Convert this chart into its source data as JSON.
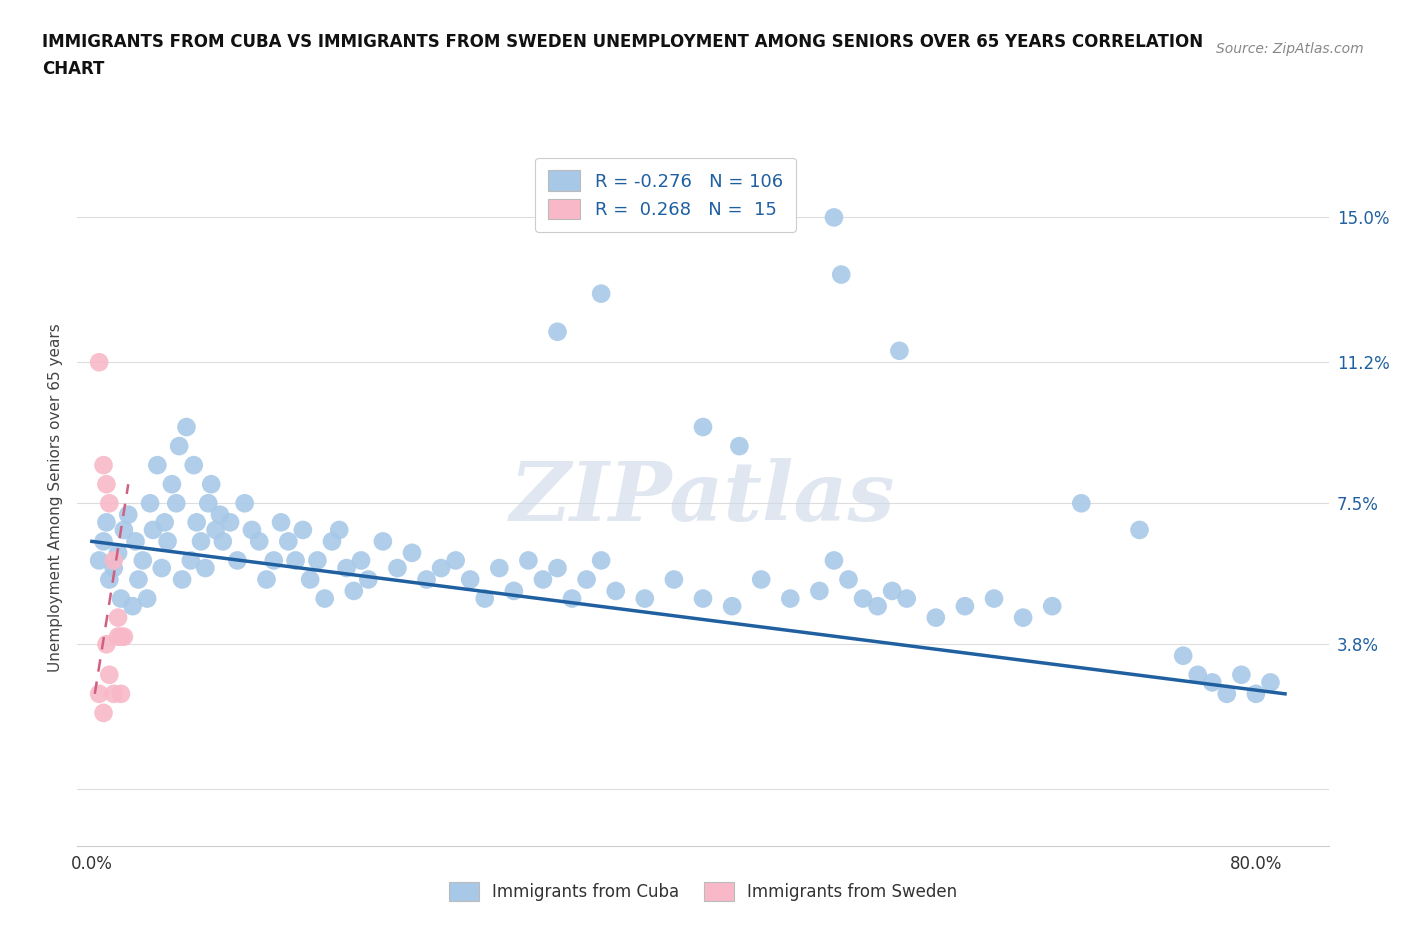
{
  "title_line1": "IMMIGRANTS FROM CUBA VS IMMIGRANTS FROM SWEDEN UNEMPLOYMENT AMONG SENIORS OVER 65 YEARS CORRELATION",
  "title_line2": "CHART",
  "source": "Source: ZipAtlas.com",
  "ylabel": "Unemployment Among Seniors over 65 years",
  "yticks": [
    0.0,
    0.038,
    0.075,
    0.112,
    0.15
  ],
  "ytick_labels": [
    "",
    "3.8%",
    "7.5%",
    "11.2%",
    "15.0%"
  ],
  "xlim": [
    -0.01,
    0.85
  ],
  "ylim": [
    -0.015,
    0.168
  ],
  "cuba_R": -0.276,
  "cuba_N": 106,
  "sweden_R": 0.268,
  "sweden_N": 15,
  "cuba_color": "#a8c8e8",
  "cuba_line_color": "#2060a0",
  "sweden_color": "#f8b8c8",
  "sweden_line_color": "#d06080",
  "watermark_color": "#ccd8e8",
  "legend_R_color": "#2060a0",
  "legend_N_color": "#2060a0",
  "tick_color": "#2060a0",
  "label_color": "#444444",
  "grid_color": "#dddddd",
  "cuba_x": [
    0.005,
    0.008,
    0.01,
    0.012,
    0.015,
    0.018,
    0.02,
    0.022,
    0.025,
    0.028,
    0.03,
    0.032,
    0.035,
    0.038,
    0.04,
    0.042,
    0.045,
    0.048,
    0.05,
    0.052,
    0.055,
    0.058,
    0.06,
    0.062,
    0.065,
    0.068,
    0.07,
    0.072,
    0.075,
    0.078,
    0.08,
    0.082,
    0.085,
    0.088,
    0.09,
    0.095,
    0.1,
    0.105,
    0.11,
    0.115,
    0.12,
    0.125,
    0.13,
    0.135,
    0.14,
    0.145,
    0.15,
    0.155,
    0.16,
    0.165,
    0.17,
    0.175,
    0.18,
    0.185,
    0.19,
    0.2,
    0.21,
    0.22,
    0.23,
    0.24,
    0.25,
    0.26,
    0.27,
    0.28,
    0.29,
    0.3,
    0.31,
    0.32,
    0.33,
    0.34,
    0.35,
    0.36,
    0.38,
    0.4,
    0.42,
    0.44,
    0.46,
    0.48,
    0.5,
    0.51,
    0.52,
    0.53,
    0.54,
    0.55,
    0.56,
    0.58,
    0.6,
    0.62,
    0.64,
    0.66,
    0.42,
    0.445,
    0.32,
    0.35,
    0.51,
    0.515,
    0.555,
    0.68,
    0.72,
    0.75,
    0.76,
    0.77,
    0.78,
    0.79,
    0.8,
    0.81
  ],
  "cuba_y": [
    0.06,
    0.065,
    0.07,
    0.055,
    0.058,
    0.062,
    0.05,
    0.068,
    0.072,
    0.048,
    0.065,
    0.055,
    0.06,
    0.05,
    0.075,
    0.068,
    0.085,
    0.058,
    0.07,
    0.065,
    0.08,
    0.075,
    0.09,
    0.055,
    0.095,
    0.06,
    0.085,
    0.07,
    0.065,
    0.058,
    0.075,
    0.08,
    0.068,
    0.072,
    0.065,
    0.07,
    0.06,
    0.075,
    0.068,
    0.065,
    0.055,
    0.06,
    0.07,
    0.065,
    0.06,
    0.068,
    0.055,
    0.06,
    0.05,
    0.065,
    0.068,
    0.058,
    0.052,
    0.06,
    0.055,
    0.065,
    0.058,
    0.062,
    0.055,
    0.058,
    0.06,
    0.055,
    0.05,
    0.058,
    0.052,
    0.06,
    0.055,
    0.058,
    0.05,
    0.055,
    0.06,
    0.052,
    0.05,
    0.055,
    0.05,
    0.048,
    0.055,
    0.05,
    0.052,
    0.06,
    0.055,
    0.05,
    0.048,
    0.052,
    0.05,
    0.045,
    0.048,
    0.05,
    0.045,
    0.048,
    0.095,
    0.09,
    0.12,
    0.13,
    0.15,
    0.135,
    0.115,
    0.075,
    0.068,
    0.035,
    0.03,
    0.028,
    0.025,
    0.03,
    0.025,
    0.028
  ],
  "sweden_x": [
    0.005,
    0.008,
    0.01,
    0.012,
    0.015,
    0.018,
    0.02,
    0.005,
    0.008,
    0.01,
    0.012,
    0.015,
    0.018,
    0.02,
    0.022
  ],
  "sweden_y": [
    0.112,
    0.085,
    0.08,
    0.075,
    0.06,
    0.045,
    0.04,
    0.025,
    0.02,
    0.038,
    0.03,
    0.025,
    0.04,
    0.025,
    0.04
  ]
}
